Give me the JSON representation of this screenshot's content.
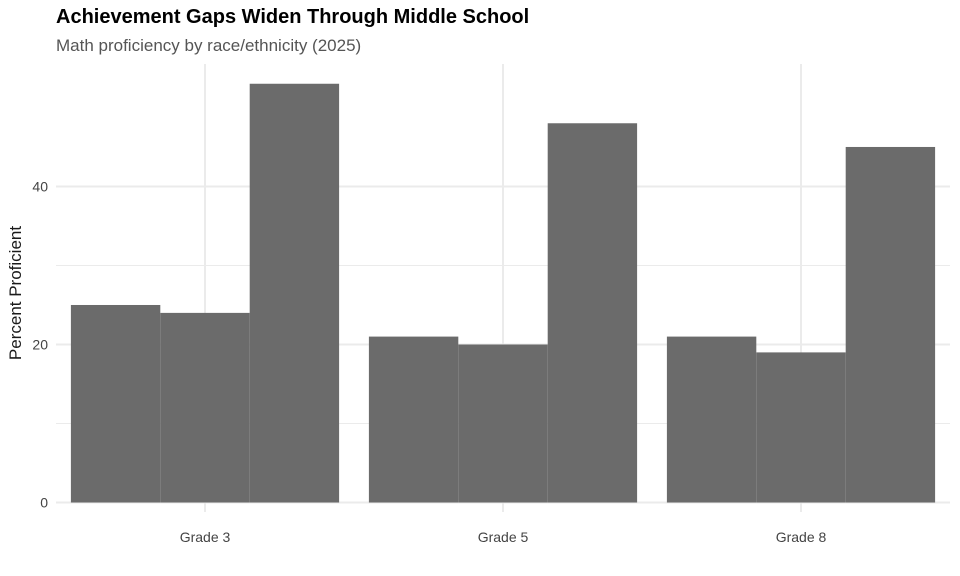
{
  "chart_data": {
    "type": "bar",
    "title": "Achievement Gaps Widen Through Middle School",
    "subtitle": "Math proficiency by race/ethnicity (2025)",
    "xlabel": "",
    "ylabel": "Percent Proficient",
    "categories": [
      "Grade 3",
      "Grade 5",
      "Grade 8"
    ],
    "series": [
      {
        "values": [
          25,
          21,
          21
        ]
      },
      {
        "values": [
          24,
          20,
          19
        ]
      },
      {
        "values": [
          53,
          48,
          45
        ]
      }
    ],
    "yticks": [
      0,
      20,
      40
    ],
    "ylim": [
      -1.2,
      55.5
    ],
    "grid": true,
    "legend": "none",
    "bar_color": "#6b6b6b",
    "grid_color": "#ebebeb"
  }
}
